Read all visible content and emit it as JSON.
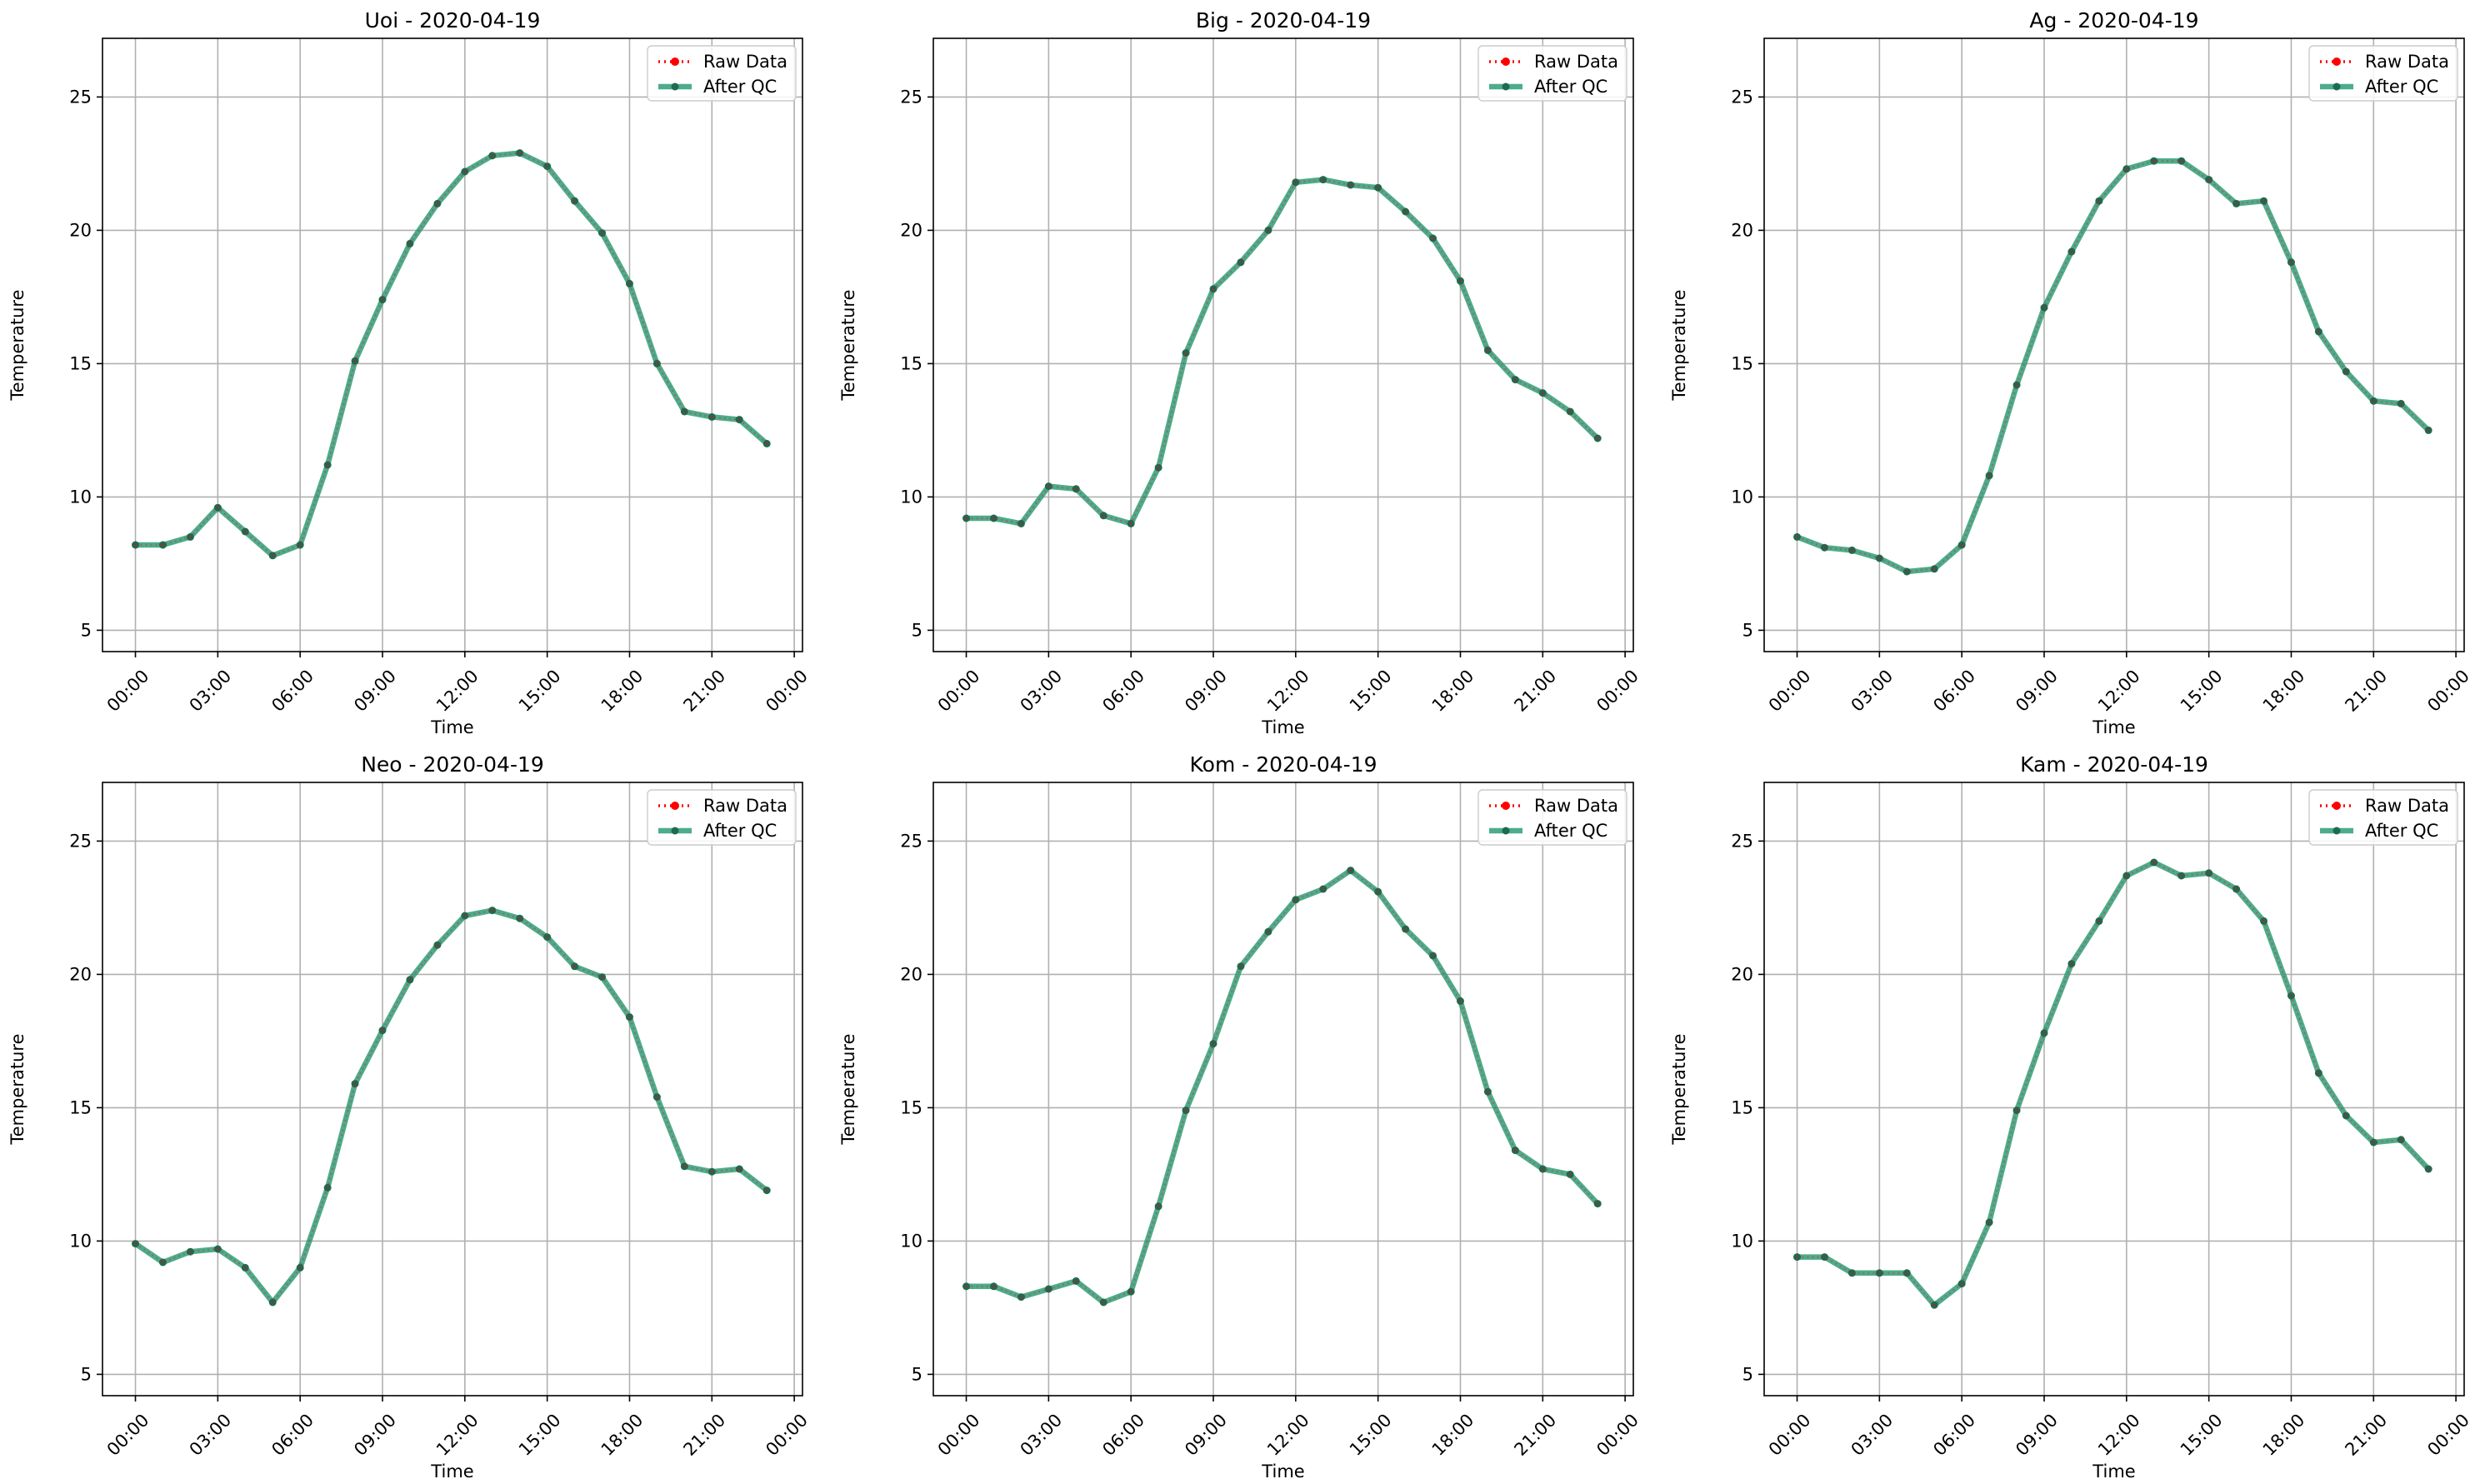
{
  "figure": {
    "colors": {
      "raw": "#ff0000",
      "qc": "#2e9e78",
      "qc_marker": "#1d6b52",
      "grid": "#b0b0b0",
      "axis": "#000000"
    }
  },
  "chart_data": [
    {
      "type": "line",
      "title": "Uoi - 2020-04-19",
      "xlabel": "Time",
      "ylabel": "Temperature",
      "x_ticks": [
        "00:00",
        "03:00",
        "06:00",
        "09:00",
        "12:00",
        "15:00",
        "18:00",
        "21:00",
        "00:00"
      ],
      "y_ticks": [
        5,
        10,
        15,
        20,
        25
      ],
      "ylim": [
        4.2,
        27.2
      ],
      "xlim_hours": [
        -1.2,
        24.3
      ],
      "grid": true,
      "legend": "top-right",
      "x_hours": [
        0,
        1,
        2,
        3,
        4,
        5,
        6,
        7,
        8,
        9,
        10,
        11,
        12,
        13,
        14,
        15,
        16,
        17,
        18,
        19,
        20,
        21,
        22,
        23
      ],
      "series": [
        {
          "name": "Raw Data",
          "style": "dotted",
          "values": [
            8.2,
            8.2,
            8.5,
            9.6,
            8.7,
            7.8,
            8.2,
            11.2,
            15.1,
            17.4,
            19.5,
            21.0,
            22.2,
            22.8,
            22.9,
            22.4,
            21.1,
            19.9,
            18.0,
            15.0,
            13.2,
            13.0,
            12.9,
            12.0
          ]
        },
        {
          "name": "After QC",
          "style": "solid",
          "values": [
            8.2,
            8.2,
            8.5,
            9.6,
            8.7,
            7.8,
            8.2,
            11.2,
            15.1,
            17.4,
            19.5,
            21.0,
            22.2,
            22.8,
            22.9,
            22.4,
            21.1,
            19.9,
            18.0,
            15.0,
            13.2,
            13.0,
            12.9,
            12.0
          ]
        }
      ]
    },
    {
      "type": "line",
      "title": "Big - 2020-04-19",
      "xlabel": "Time",
      "ylabel": "Temperature",
      "x_ticks": [
        "00:00",
        "03:00",
        "06:00",
        "09:00",
        "12:00",
        "15:00",
        "18:00",
        "21:00",
        "00:00"
      ],
      "y_ticks": [
        5,
        10,
        15,
        20,
        25
      ],
      "ylim": [
        4.2,
        27.2
      ],
      "xlim_hours": [
        -1.2,
        24.3
      ],
      "grid": true,
      "legend": "top-right",
      "x_hours": [
        0,
        1,
        2,
        3,
        4,
        5,
        6,
        7,
        8,
        9,
        10,
        11,
        12,
        13,
        14,
        15,
        16,
        17,
        18,
        19,
        20,
        21,
        22,
        23
      ],
      "series": [
        {
          "name": "Raw Data",
          "style": "dotted",
          "values": [
            9.2,
            9.2,
            9.0,
            10.4,
            10.3,
            9.3,
            9.0,
            11.1,
            15.4,
            17.8,
            18.8,
            20.0,
            21.8,
            21.9,
            21.7,
            21.6,
            20.7,
            19.7,
            18.1,
            15.5,
            14.4,
            13.9,
            13.2,
            12.2
          ]
        },
        {
          "name": "After QC",
          "style": "solid",
          "values": [
            9.2,
            9.2,
            9.0,
            10.4,
            10.3,
            9.3,
            9.0,
            11.1,
            15.4,
            17.8,
            18.8,
            20.0,
            21.8,
            21.9,
            21.7,
            21.6,
            20.7,
            19.7,
            18.1,
            15.5,
            14.4,
            13.9,
            13.2,
            12.2
          ]
        }
      ]
    },
    {
      "type": "line",
      "title": "Ag - 2020-04-19",
      "xlabel": "Time",
      "ylabel": "Temperature",
      "x_ticks": [
        "00:00",
        "03:00",
        "06:00",
        "09:00",
        "12:00",
        "15:00",
        "18:00",
        "21:00",
        "00:00"
      ],
      "y_ticks": [
        5,
        10,
        15,
        20,
        25
      ],
      "ylim": [
        4.2,
        27.2
      ],
      "xlim_hours": [
        -1.2,
        24.3
      ],
      "grid": true,
      "legend": "top-right",
      "x_hours": [
        0,
        1,
        2,
        3,
        4,
        5,
        6,
        7,
        8,
        9,
        10,
        11,
        12,
        13,
        14,
        15,
        16,
        17,
        18,
        19,
        20,
        21,
        22,
        23
      ],
      "series": [
        {
          "name": "Raw Data",
          "style": "dotted",
          "values": [
            8.5,
            8.1,
            8.0,
            7.7,
            7.2,
            7.3,
            8.2,
            10.8,
            14.2,
            17.1,
            19.2,
            21.1,
            22.3,
            22.6,
            22.6,
            21.9,
            21.0,
            21.1,
            18.8,
            16.2,
            14.7,
            13.6,
            13.5,
            12.5
          ]
        },
        {
          "name": "After QC",
          "style": "solid",
          "values": [
            8.5,
            8.1,
            8.0,
            7.7,
            7.2,
            7.3,
            8.2,
            10.8,
            14.2,
            17.1,
            19.2,
            21.1,
            22.3,
            22.6,
            22.6,
            21.9,
            21.0,
            21.1,
            18.8,
            16.2,
            14.7,
            13.6,
            13.5,
            12.5
          ]
        }
      ]
    },
    {
      "type": "line",
      "title": "Neo - 2020-04-19",
      "xlabel": "Time",
      "ylabel": "Temperature",
      "x_ticks": [
        "00:00",
        "03:00",
        "06:00",
        "09:00",
        "12:00",
        "15:00",
        "18:00",
        "21:00",
        "00:00"
      ],
      "y_ticks": [
        5,
        10,
        15,
        20,
        25
      ],
      "ylim": [
        4.2,
        27.2
      ],
      "xlim_hours": [
        -1.2,
        24.3
      ],
      "grid": true,
      "legend": "top-right",
      "x_hours": [
        0,
        1,
        2,
        3,
        4,
        5,
        6,
        7,
        8,
        9,
        10,
        11,
        12,
        13,
        14,
        15,
        16,
        17,
        18,
        19,
        20,
        21,
        22,
        23
      ],
      "series": [
        {
          "name": "Raw Data",
          "style": "dotted",
          "values": [
            9.9,
            9.2,
            9.6,
            9.7,
            9.0,
            7.7,
            9.0,
            12.0,
            15.9,
            17.9,
            19.8,
            21.1,
            22.2,
            22.4,
            22.1,
            21.4,
            20.3,
            19.9,
            18.4,
            15.4,
            12.8,
            12.6,
            12.7,
            11.9
          ]
        },
        {
          "name": "After QC",
          "style": "solid",
          "values": [
            9.9,
            9.2,
            9.6,
            9.7,
            9.0,
            7.7,
            9.0,
            12.0,
            15.9,
            17.9,
            19.8,
            21.1,
            22.2,
            22.4,
            22.1,
            21.4,
            20.3,
            19.9,
            18.4,
            15.4,
            12.8,
            12.6,
            12.7,
            11.9
          ]
        }
      ]
    },
    {
      "type": "line",
      "title": "Kom - 2020-04-19",
      "xlabel": "Time",
      "ylabel": "Temperature",
      "x_ticks": [
        "00:00",
        "03:00",
        "06:00",
        "09:00",
        "12:00",
        "15:00",
        "18:00",
        "21:00",
        "00:00"
      ],
      "y_ticks": [
        5,
        10,
        15,
        20,
        25
      ],
      "ylim": [
        4.2,
        27.2
      ],
      "xlim_hours": [
        -1.2,
        24.3
      ],
      "grid": true,
      "legend": "top-right",
      "x_hours": [
        0,
        1,
        2,
        3,
        4,
        5,
        6,
        7,
        8,
        9,
        10,
        11,
        12,
        13,
        14,
        15,
        16,
        17,
        18,
        19,
        20,
        21,
        22,
        23
      ],
      "series": [
        {
          "name": "Raw Data",
          "style": "dotted",
          "values": [
            8.3,
            8.3,
            7.9,
            8.2,
            8.5,
            7.7,
            8.1,
            11.3,
            14.9,
            17.4,
            20.3,
            21.6,
            22.8,
            23.2,
            23.9,
            23.1,
            21.7,
            20.7,
            19.0,
            15.6,
            13.4,
            12.7,
            12.5,
            11.4
          ]
        },
        {
          "name": "After QC",
          "style": "solid",
          "values": [
            8.3,
            8.3,
            7.9,
            8.2,
            8.5,
            7.7,
            8.1,
            11.3,
            14.9,
            17.4,
            20.3,
            21.6,
            22.8,
            23.2,
            23.9,
            23.1,
            21.7,
            20.7,
            19.0,
            15.6,
            13.4,
            12.7,
            12.5,
            11.4
          ]
        }
      ]
    },
    {
      "type": "line",
      "title": "Kam - 2020-04-19",
      "xlabel": "Time",
      "ylabel": "Temperature",
      "x_ticks": [
        "00:00",
        "03:00",
        "06:00",
        "09:00",
        "12:00",
        "15:00",
        "18:00",
        "21:00",
        "00:00"
      ],
      "y_ticks": [
        5,
        10,
        15,
        20,
        25
      ],
      "ylim": [
        4.2,
        27.2
      ],
      "xlim_hours": [
        -1.2,
        24.3
      ],
      "grid": true,
      "legend": "top-right",
      "x_hours": [
        0,
        1,
        2,
        3,
        4,
        5,
        6,
        7,
        8,
        9,
        10,
        11,
        12,
        13,
        14,
        15,
        16,
        17,
        18,
        19,
        20,
        21,
        22,
        23
      ],
      "series": [
        {
          "name": "Raw Data",
          "style": "dotted",
          "values": [
            9.4,
            9.4,
            8.8,
            8.8,
            8.8,
            7.6,
            8.4,
            10.7,
            14.9,
            17.8,
            20.4,
            22.0,
            23.7,
            24.2,
            23.7,
            23.8,
            23.2,
            22.0,
            19.2,
            16.3,
            14.7,
            13.7,
            13.8,
            12.7
          ]
        },
        {
          "name": "After QC",
          "style": "solid",
          "values": [
            9.4,
            9.4,
            8.8,
            8.8,
            8.8,
            7.6,
            8.4,
            10.7,
            14.9,
            17.8,
            20.4,
            22.0,
            23.7,
            24.2,
            23.7,
            23.8,
            23.2,
            22.0,
            19.2,
            16.3,
            14.7,
            13.7,
            13.8,
            12.7
          ]
        }
      ]
    }
  ]
}
